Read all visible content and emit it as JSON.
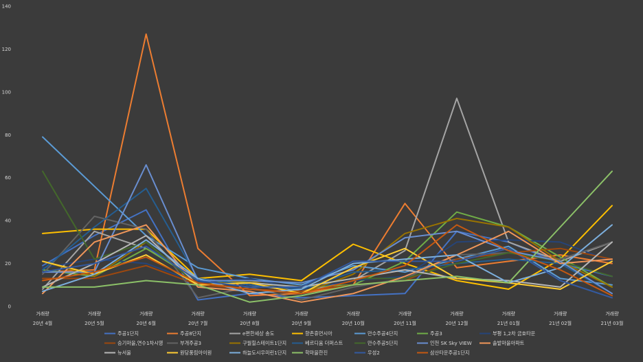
{
  "chart_data": {
    "type": "line",
    "title": "",
    "xlabel": "",
    "ylabel": "",
    "ylim": [
      0,
      140
    ],
    "yticks": [
      0,
      20,
      40,
      60,
      80,
      100,
      120,
      140
    ],
    "grid": false,
    "legend_position": "bottom",
    "category_top": [
      "거래량",
      "거래량",
      "거래량",
      "거래량",
      "거래량",
      "거래량",
      "거래량",
      "거래량",
      "거래량",
      "거래량",
      "거래량",
      "거래량"
    ],
    "category_bottom": [
      "20년 4월",
      "20년 5월",
      "20년 6월",
      "20년 7월",
      "20년 8월",
      "20년 9월",
      "20년 10월",
      "20년 11월",
      "20년 12월",
      "21년 01월",
      "21년 02월",
      "21년 03월"
    ],
    "series": [
      {
        "name": "주공1단지",
        "color": "#4472c4",
        "values": [
          19,
          33,
          45,
          3,
          6,
          4,
          5,
          6,
          35,
          30,
          20,
          14
        ]
      },
      {
        "name": "주공8단지",
        "color": "#ed7d31",
        "values": [
          16,
          17,
          127,
          27,
          5,
          6,
          10,
          48,
          18,
          21,
          24,
          20
        ]
      },
      {
        "name": "e편한세상 송도",
        "color": "#a5a5a5",
        "values": [
          8,
          35,
          27,
          13,
          10,
          7,
          12,
          26,
          97,
          30,
          21,
          30
        ]
      },
      {
        "name": "향촌휴먼시아",
        "color": "#ffc000",
        "values": [
          34,
          36,
          36,
          13,
          15,
          12,
          29,
          20,
          12,
          8,
          22,
          47
        ]
      },
      {
        "name": "만수주공4단지",
        "color": "#5b9bd5",
        "values": [
          79,
          56,
          33,
          18,
          13,
          10,
          19,
          16,
          22,
          28,
          13,
          10
        ]
      },
      {
        "name": "주공3",
        "color": "#70ad47",
        "values": [
          17,
          14,
          27,
          12,
          11,
          9,
          10,
          21,
          44,
          37,
          23,
          9
        ]
      },
      {
        "name": "부평 1,2차 금호타운",
        "color": "#264478",
        "values": [
          18,
          22,
          20,
          11,
          13,
          8,
          12,
          14,
          30,
          31,
          30,
          21
        ]
      },
      {
        "name": "승기마을,연수1차시영",
        "color": "#9e480e",
        "values": [
          13,
          13,
          19,
          10,
          8,
          7,
          10,
          12,
          22,
          25,
          27,
          22
        ]
      },
      {
        "name": "부개주공3",
        "color": "#636363",
        "values": [
          15,
          42,
          36,
          4,
          9,
          3,
          9,
          13,
          24,
          25,
          22,
          30
        ]
      },
      {
        "name": "구월힐스테이트1단지",
        "color": "#997300",
        "values": [
          21,
          14,
          30,
          10,
          12,
          6,
          15,
          34,
          41,
          37,
          21,
          9
        ]
      },
      {
        "name": "베르디움 더퍼스트",
        "color": "#255e91",
        "values": [
          17,
          37,
          55,
          13,
          10,
          8,
          16,
          17,
          20,
          22,
          20,
          6
        ]
      },
      {
        "name": "만수주공5단지",
        "color": "#43682b",
        "values": [
          63,
          22,
          30,
          10,
          11,
          9,
          13,
          13,
          20,
          25,
          21,
          14
        ]
      },
      {
        "name": "인천 SK Sky VIEW",
        "color": "#698ed0",
        "values": [
          16,
          16,
          66,
          12,
          12,
          11,
          17,
          32,
          35,
          26,
          21,
          6
        ]
      },
      {
        "name": "솔밭마을아파트",
        "color": "#f1975a",
        "values": [
          6,
          30,
          38,
          9,
          7,
          2,
          6,
          14,
          24,
          35,
          20,
          22
        ]
      },
      {
        "name": "뉴서울",
        "color": "#b7b7b7",
        "values": [
          9,
          20,
          33,
          10,
          11,
          9,
          13,
          17,
          13,
          12,
          9,
          30
        ]
      },
      {
        "name": "원당풍림아이원",
        "color": "#ffcd33",
        "values": [
          21,
          15,
          24,
          10,
          11,
          6,
          18,
          27,
          13,
          11,
          8,
          21
        ]
      },
      {
        "name": "하늘도시우미린1단지",
        "color": "#7cafdd",
        "values": [
          7,
          15,
          31,
          13,
          6,
          8,
          20,
          22,
          24,
          11,
          18,
          38
        ]
      },
      {
        "name": "학마을한진",
        "color": "#8cc168",
        "values": [
          9,
          9,
          12,
          10,
          2,
          5,
          10,
          12,
          14,
          11,
          37,
          63
        ]
      },
      {
        "name": "우성2",
        "color": "#335aa1",
        "values": [
          16,
          20,
          28,
          12,
          9,
          9,
          21,
          21,
          21,
          27,
          12,
          4
        ]
      },
      {
        "name": "삼산타운주공1단지",
        "color": "#c65911",
        "values": [
          12,
          16,
          23,
          11,
          8,
          6,
          12,
          19,
          38,
          26,
          17,
          5
        ]
      }
    ]
  }
}
